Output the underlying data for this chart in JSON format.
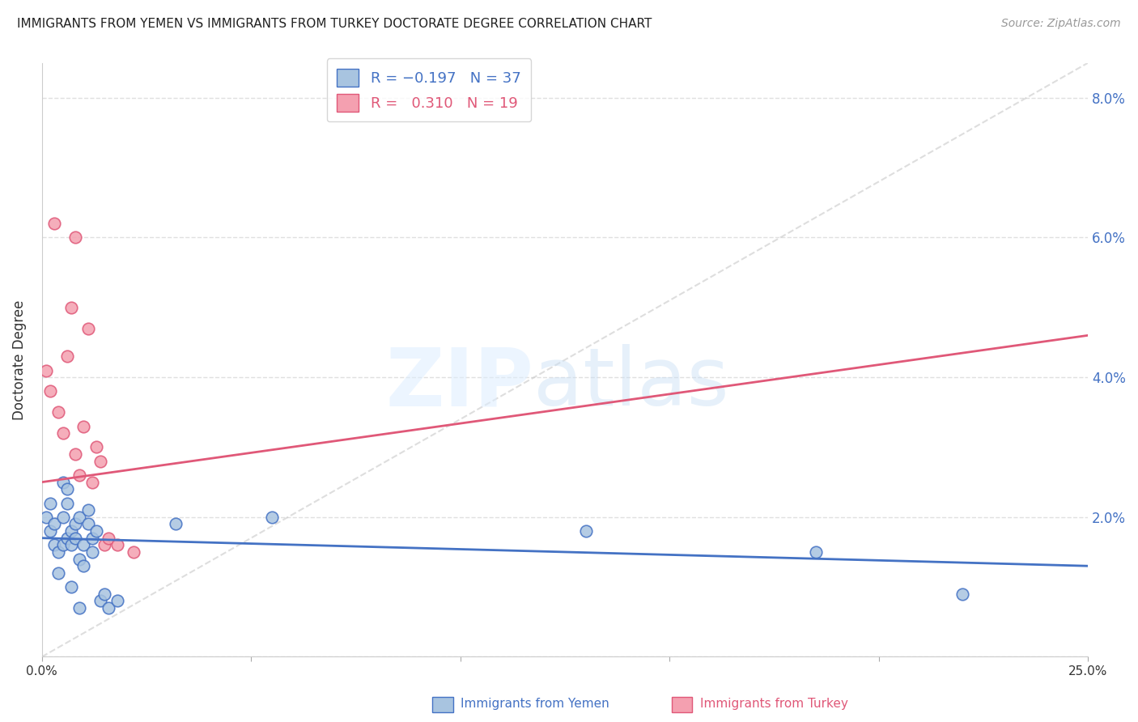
{
  "title": "IMMIGRANTS FROM YEMEN VS IMMIGRANTS FROM TURKEY DOCTORATE DEGREE CORRELATION CHART",
  "source": "Source: ZipAtlas.com",
  "ylabel": "Doctorate Degree",
  "right_yticks": [
    0.0,
    0.02,
    0.04,
    0.06,
    0.08
  ],
  "right_yticklabels": [
    "",
    "2.0%",
    "4.0%",
    "6.0%",
    "8.0%"
  ],
  "xlim": [
    0.0,
    0.25
  ],
  "ylim": [
    0.0,
    0.085
  ],
  "color_yemen": "#a8c4e0",
  "color_turkey": "#f4a0b0",
  "line_color_yemen": "#4472c4",
  "line_color_turkey": "#e05878",
  "dashed_line_color": "#c8c8c8",
  "background_color": "#ffffff",
  "grid_color": "#e0e0e0",
  "title_fontsize": 11,
  "axis_label_color": "#333333",
  "tick_color_right": "#4472c4",
  "yemen_scatter_x": [
    0.001,
    0.002,
    0.002,
    0.003,
    0.003,
    0.004,
    0.004,
    0.005,
    0.005,
    0.005,
    0.006,
    0.006,
    0.006,
    0.007,
    0.007,
    0.008,
    0.008,
    0.009,
    0.009,
    0.01,
    0.01,
    0.011,
    0.011,
    0.012,
    0.012,
    0.013,
    0.014,
    0.015,
    0.016,
    0.018,
    0.032,
    0.055,
    0.13,
    0.185,
    0.22,
    0.007,
    0.009
  ],
  "yemen_scatter_y": [
    0.02,
    0.018,
    0.022,
    0.016,
    0.019,
    0.015,
    0.012,
    0.016,
    0.02,
    0.025,
    0.017,
    0.022,
    0.024,
    0.018,
    0.016,
    0.019,
    0.017,
    0.02,
    0.014,
    0.013,
    0.016,
    0.021,
    0.019,
    0.017,
    0.015,
    0.018,
    0.008,
    0.009,
    0.007,
    0.008,
    0.019,
    0.02,
    0.018,
    0.015,
    0.009,
    0.01,
    0.007
  ],
  "turkey_scatter_x": [
    0.001,
    0.002,
    0.003,
    0.004,
    0.005,
    0.006,
    0.007,
    0.008,
    0.008,
    0.009,
    0.01,
    0.011,
    0.012,
    0.013,
    0.014,
    0.015,
    0.016,
    0.018,
    0.022
  ],
  "turkey_scatter_y": [
    0.041,
    0.038,
    0.062,
    0.035,
    0.032,
    0.043,
    0.05,
    0.029,
    0.06,
    0.026,
    0.033,
    0.047,
    0.025,
    0.03,
    0.028,
    0.016,
    0.017,
    0.016,
    0.015
  ]
}
